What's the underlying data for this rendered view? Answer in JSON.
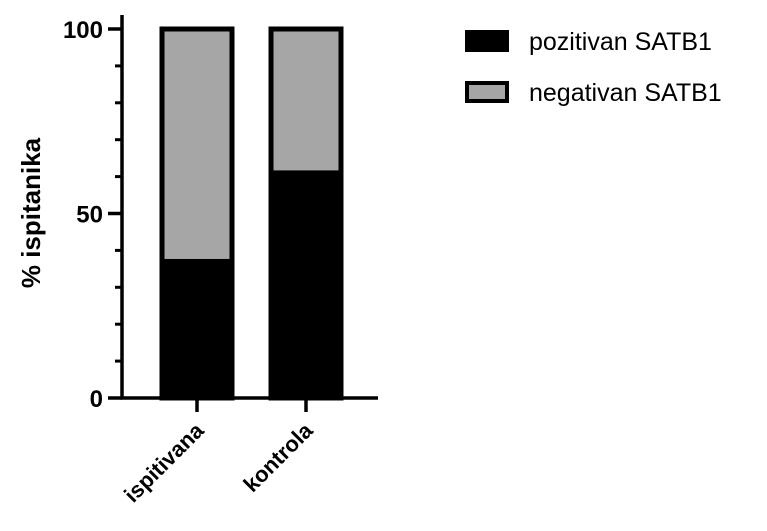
{
  "chart_data": {
    "type": "bar",
    "stacked": true,
    "categories": [
      "ispitivana",
      "kontrola"
    ],
    "series": [
      {
        "name": "pozitivan SATB1",
        "values": [
          37,
          61
        ],
        "color": "#000000"
      },
      {
        "name": "negativan SATB1",
        "values": [
          63,
          39
        ],
        "color": "#a6a6a6"
      }
    ],
    "ylabel": "% ispitanika",
    "xlabel": "",
    "ylim": [
      0,
      100
    ],
    "yticks": [
      0,
      50,
      100
    ],
    "ytick_labels": [
      "0",
      "50",
      "100"
    ],
    "legend_position": "top-right",
    "grid": false
  }
}
